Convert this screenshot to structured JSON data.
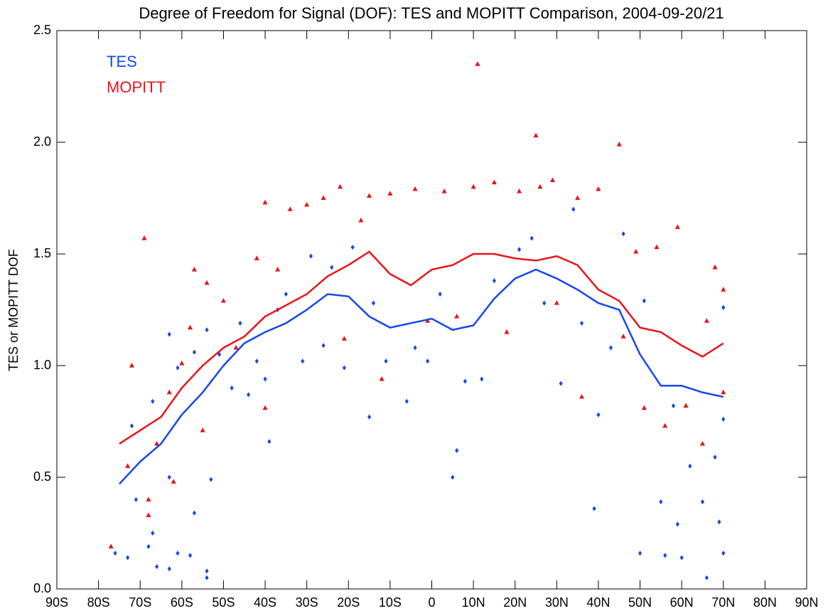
{
  "chart_data": {
    "type": "line",
    "title": "Degree of Freedom for Signal (DOF): TES and MOPITT Comparison, 2004-09-20/21",
    "y_label": "TES or MOPITT DOF",
    "xlim": [
      -90,
      90
    ],
    "xticks": [
      {
        "value": -90,
        "label": "90S"
      },
      {
        "value": -80,
        "label": "80S"
      },
      {
        "value": -70,
        "label": "70S"
      },
      {
        "value": -60,
        "label": "60S"
      },
      {
        "value": -50,
        "label": "50S"
      },
      {
        "value": -40,
        "label": "40S"
      },
      {
        "value": -30,
        "label": "30S"
      },
      {
        "value": -20,
        "label": "20S"
      },
      {
        "value": -10,
        "label": "10S"
      },
      0,
      {
        "value": 10,
        "label": "10N"
      },
      {
        "value": 20,
        "label": "20N"
      },
      {
        "value": 30,
        "label": "30N"
      },
      {
        "value": 40,
        "label": "40N"
      },
      {
        "value": 50,
        "label": "50N"
      },
      {
        "value": 60,
        "label": "60N"
      },
      {
        "value": 70,
        "label": "70N"
      },
      {
        "value": 80,
        "label": "80N"
      },
      {
        "value": 90,
        "label": "90N"
      }
    ],
    "ylim": [
      0,
      2.5
    ],
    "yticks": [
      {
        "value": 0,
        "label": "0.0"
      },
      0.5,
      {
        "value": 1,
        "label": "1.0"
      },
      1.5,
      {
        "value": 2,
        "label": "2.0"
      },
      2.5
    ],
    "grid": false,
    "legend": "upper left",
    "series": [
      {
        "name": "TES",
        "color": "#1448e8",
        "marker": "diamond",
        "x": [
          -75,
          -70,
          -65,
          -60,
          -55,
          -50,
          -45,
          -40,
          -35,
          -30,
          -25,
          -20,
          -15,
          -10,
          -5,
          0,
          5,
          10,
          15,
          20,
          25,
          30,
          35,
          40,
          45,
          50,
          55,
          60,
          65,
          70
        ],
        "values": [
          0.47,
          0.57,
          0.65,
          0.78,
          0.88,
          1.0,
          1.1,
          1.15,
          1.19,
          1.25,
          1.32,
          1.31,
          1.22,
          1.17,
          1.19,
          1.21,
          1.16,
          1.18,
          1.3,
          1.39,
          1.43,
          1.39,
          1.34,
          1.28,
          1.25,
          1.05,
          0.91,
          0.91,
          0.88,
          0.86
        ],
        "points": {
          "x": [
            -76,
            -73,
            -71,
            -72,
            -67,
            -67,
            -68,
            -66,
            -63,
            -63,
            -63,
            -61,
            -61,
            -58,
            -57,
            -57,
            -54,
            -54,
            -53,
            -54,
            -51,
            -48,
            -46,
            -44,
            -42,
            -40,
            -39,
            -37,
            -35,
            -31,
            -29,
            -26,
            -24,
            -21,
            -19,
            -15,
            -14,
            -11,
            -6,
            -4,
            -1,
            2,
            5,
            6,
            8,
            12,
            15,
            21,
            24,
            27,
            31,
            34,
            36,
            39,
            40,
            43,
            46,
            50,
            51,
            55,
            56,
            58,
            59,
            60,
            62,
            65,
            66,
            69,
            70,
            70,
            68,
            70
          ],
          "y": [
            0.16,
            0.14,
            0.4,
            0.73,
            0.25,
            0.84,
            0.19,
            0.1,
            0.09,
            0.5,
            1.14,
            0.16,
            0.99,
            0.15,
            0.34,
            1.06,
            0.05,
            0.08,
            0.49,
            1.16,
            1.05,
            0.9,
            1.19,
            0.87,
            1.02,
            0.94,
            0.66,
            1.25,
            1.32,
            1.02,
            1.49,
            1.09,
            1.44,
            0.99,
            1.53,
            0.77,
            1.28,
            1.02,
            0.84,
            1.08,
            1.02,
            1.32,
            0.5,
            0.62,
            0.93,
            0.94,
            1.38,
            1.52,
            1.57,
            1.28,
            0.92,
            1.7,
            1.19,
            0.36,
            0.78,
            1.08,
            1.59,
            0.16,
            1.29,
            0.39,
            0.15,
            0.82,
            0.29,
            0.14,
            0.55,
            0.39,
            0.05,
            0.3,
            0.16,
            1.26,
            0.59,
            0.76
          ]
        }
      },
      {
        "name": "MOPITT",
        "color": "#e8141a",
        "marker": "triangle",
        "x": [
          -75,
          -70,
          -65,
          -60,
          -55,
          -50,
          -45,
          -40,
          -35,
          -30,
          -25,
          -20,
          -15,
          -10,
          -5,
          0,
          5,
          10,
          15,
          20,
          25,
          30,
          35,
          40,
          45,
          50,
          55,
          60,
          65,
          70
        ],
        "values": [
          0.65,
          0.71,
          0.77,
          0.9,
          1.0,
          1.08,
          1.13,
          1.22,
          1.27,
          1.32,
          1.4,
          1.45,
          1.51,
          1.41,
          1.36,
          1.43,
          1.45,
          1.5,
          1.5,
          1.48,
          1.47,
          1.49,
          1.45,
          1.34,
          1.29,
          1.17,
          1.15,
          1.09,
          1.04,
          1.1
        ],
        "points": {
          "x": [
            -77,
            -73,
            -72,
            -69,
            -68,
            -68,
            -66,
            -63,
            -62,
            -60,
            -58,
            -57,
            -55,
            -54,
            -50,
            -47,
            -42,
            -40,
            -40,
            -37,
            -34,
            -30,
            -26,
            -22,
            -21,
            -17,
            -15,
            -12,
            -10,
            -4,
            -1,
            3,
            6,
            10,
            11,
            15,
            18,
            21,
            25,
            26,
            29,
            30,
            35,
            36,
            40,
            45,
            46,
            49,
            51,
            54,
            56,
            59,
            61,
            65,
            66,
            68,
            70,
            70
          ],
          "y": [
            0.19,
            0.55,
            1.0,
            1.57,
            0.4,
            0.33,
            0.65,
            0.88,
            0.48,
            1.01,
            1.17,
            1.43,
            0.71,
            1.37,
            1.29,
            1.08,
            1.48,
            1.73,
            0.81,
            1.43,
            1.7,
            1.72,
            1.75,
            1.8,
            1.12,
            1.65,
            1.76,
            0.94,
            1.77,
            1.79,
            1.2,
            1.78,
            1.22,
            1.8,
            2.35,
            1.82,
            1.15,
            1.78,
            2.03,
            1.8,
            1.83,
            1.28,
            1.75,
            0.86,
            1.79,
            1.99,
            1.13,
            1.51,
            0.81,
            1.53,
            0.73,
            1.62,
            0.82,
            0.65,
            1.2,
            1.44,
            1.34,
            0.88
          ]
        }
      }
    ]
  }
}
